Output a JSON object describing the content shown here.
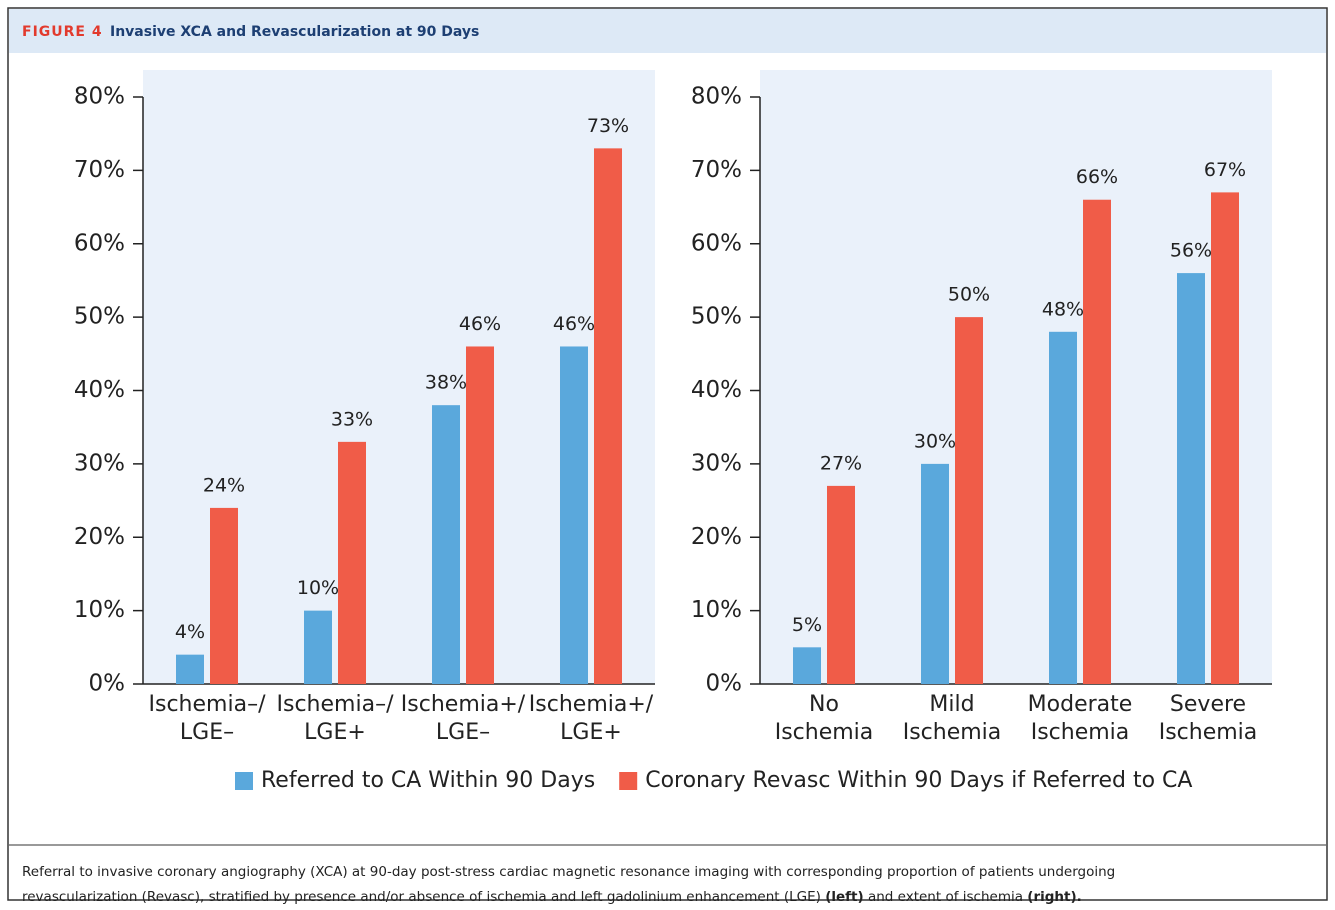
{
  "figure": {
    "label": "FIGURE 4",
    "title": "Invasive XCA and Revascularization at 90 Days"
  },
  "legend": {
    "position": "bottom",
    "entries": [
      {
        "name": "Referred to CA Within 90 Days",
        "color": "#5aa8dc"
      },
      {
        "name": "Coronary Revasc Within 90 Days if Referred to CA",
        "color": "#f05c48"
      }
    ]
  },
  "chart_data": [
    {
      "type": "bar",
      "categories": [
        [
          "Ischemia–/",
          "LGE–"
        ],
        [
          "Ischemia–/",
          "LGE+"
        ],
        [
          "Ischemia+/",
          "LGE–"
        ],
        [
          "Ischemia+/",
          "LGE+"
        ]
      ],
      "series": [
        {
          "name": "Referred to CA Within 90 Days",
          "color": "#5aa8dc",
          "values": [
            4,
            10,
            38,
            46
          ],
          "value_labels": [
            "4%",
            "10%",
            "38%",
            "46%"
          ]
        },
        {
          "name": "Coronary Revasc Within 90 Days if Referred to CA",
          "color": "#f05c48",
          "values": [
            24,
            33,
            46,
            73
          ],
          "value_labels": [
            "24%",
            "33%",
            "46%",
            "73%"
          ]
        }
      ],
      "ylim": [
        0,
        80
      ],
      "yticks": [
        {
          "value": 0,
          "label": "0%"
        },
        {
          "value": 10,
          "label": "10%"
        },
        {
          "value": 20,
          "label": "20%"
        },
        {
          "value": 30,
          "label": "30%"
        },
        {
          "value": 40,
          "label": "40%"
        },
        {
          "value": 50,
          "label": "50%"
        },
        {
          "value": 60,
          "label": "60%"
        },
        {
          "value": 70,
          "label": "70%"
        },
        {
          "value": 80,
          "label": "80%"
        }
      ],
      "grid": false
    },
    {
      "type": "bar",
      "categories": [
        [
          "No",
          "Ischemia"
        ],
        [
          "Mild",
          "Ischemia"
        ],
        [
          "Moderate",
          "Ischemia"
        ],
        [
          "Severe",
          "Ischemia"
        ]
      ],
      "series": [
        {
          "color": "#5aa8dc",
          "values": [
            5,
            30,
            48,
            56
          ],
          "value_labels": [
            "5%",
            "30%",
            "48%",
            "56%"
          ]
        },
        {
          "color": "#f05c48",
          "values": [
            27,
            50,
            66,
            67
          ],
          "value_labels": [
            "27%",
            "50%",
            "66%",
            "67%"
          ]
        }
      ],
      "ylim": [
        0,
        80
      ],
      "yticks": [
        {
          "value": 0,
          "label": "0%"
        },
        {
          "value": 10,
          "label": "10%"
        },
        {
          "value": 20,
          "label": "20%"
        },
        {
          "value": 30,
          "label": "30%"
        },
        {
          "value": 40,
          "label": "40%"
        },
        {
          "value": 50,
          "label": "50%"
        },
        {
          "value": 60,
          "label": "60%"
        },
        {
          "value": 70,
          "label": "70%"
        },
        {
          "value": 80,
          "label": "80%"
        }
      ],
      "grid": false
    }
  ],
  "caption": {
    "lines": [
      [
        {
          "text": "Referral to invasive coronary angiography (XCA) at 90-day post-stress cardiac magnetic resonance imaging with corresponding proportion of patients undergoing"
        }
      ],
      [
        {
          "text": "revascularization (Revasc), stratified by presence and/or absence of ischemia and left gadolinium enhancement (LGE) "
        },
        {
          "text": "(left)",
          "bold": true
        },
        {
          "text": " and extent of ischemia "
        },
        {
          "text": "(right).",
          "bold": true
        }
      ]
    ]
  }
}
